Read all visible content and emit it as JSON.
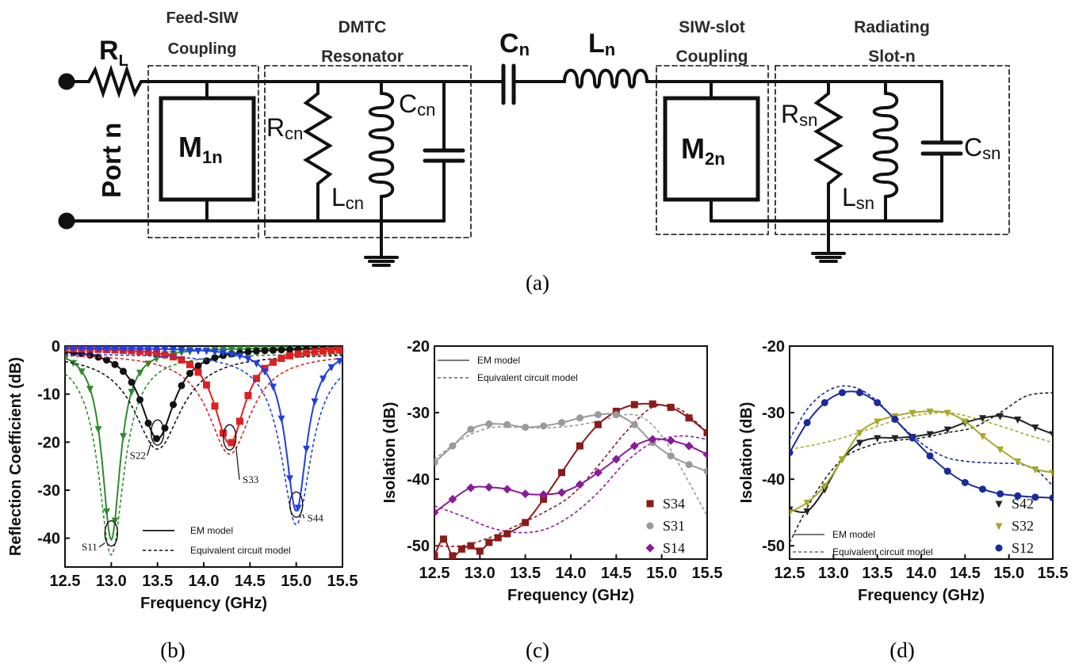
{
  "circuit": {
    "rl": "R",
    "rl_sub": "L",
    "port": "Port n",
    "feed_label_1": "Feed-SIW",
    "feed_label_2": "Coupling",
    "dmtc_label_1": "DMTC",
    "dmtc_label_2": "Resonator",
    "siwslot_label_1": "SIW-slot",
    "siwslot_label_2": "Coupling",
    "rad_label_1": "Radiating",
    "rad_label_2": "Slot-n",
    "m1": "M",
    "m1_sub": "1n",
    "m2": "M",
    "m2_sub": "2n",
    "cn": "C",
    "cn_sub": "n",
    "ln": "L",
    "ln_sub": "n",
    "rcn": "R",
    "rcn_sub": "cn",
    "lcn": "L",
    "lcn_sub": "cn",
    "ccn": "C",
    "ccn_sub": "cn",
    "rsn": "R",
    "rsn_sub": "sn",
    "lsn": "L",
    "lsn_sub": "sn",
    "csn": "C",
    "csn_sub": "sn"
  },
  "captions": {
    "a": "(a)",
    "b": "(b)",
    "c": "(c)",
    "d": "(d)"
  },
  "chart_data": [
    {
      "type": "line",
      "xlabel": "Frequency (GHz)",
      "ylabel": "Reflection Coefficient (dB)",
      "xlim": [
        12.5,
        15.5
      ],
      "ylim": [
        -46,
        0
      ],
      "xticks": [
        "12.5",
        "13.0",
        "13.5",
        "14.0",
        "14.5",
        "15.0",
        "15.5"
      ],
      "yticks": [
        "0",
        "-10",
        "-20",
        "-30",
        "-40"
      ],
      "legend": [
        "EM model",
        "Equivalent circuit model"
      ],
      "series": [
        {
          "name": "S11",
          "color": "#2e8b2e",
          "marker": "triangle-down",
          "resonance": 13.0,
          "depth": -40,
          "width": 0.12
        },
        {
          "name": "S22",
          "color": "#111111",
          "marker": "circle",
          "resonance": 13.5,
          "depth": -19,
          "width": 0.22
        },
        {
          "name": "S33",
          "color": "#e02020",
          "marker": "square",
          "resonance": 14.28,
          "depth": -20,
          "width": 0.2
        },
        {
          "name": "S44",
          "color": "#1f3fe0",
          "marker": "triangle-down",
          "resonance": 15.0,
          "depth": -34,
          "width": 0.14
        }
      ],
      "annotations": [
        {
          "text": "S11",
          "x": 12.68,
          "y": -42.5
        },
        {
          "text": "S22",
          "x": 13.2,
          "y": -23.5
        },
        {
          "text": "S33",
          "x": 14.42,
          "y": -28.5
        },
        {
          "text": "S44",
          "x": 15.12,
          "y": -36.5
        }
      ]
    },
    {
      "type": "line",
      "xlabel": "Frequency (GHz)",
      "ylabel": "Isolation (dB)",
      "xlim": [
        12.5,
        15.5
      ],
      "ylim": [
        -52,
        -20
      ],
      "xticks": [
        "12.5",
        "13.0",
        "13.5",
        "14.0",
        "14.5",
        "15.0",
        "15.5"
      ],
      "yticks": [
        "-20",
        "-30",
        "-40",
        "-50"
      ],
      "legend": [
        "EM model",
        "Equivalent circuit model"
      ],
      "series": [
        {
          "name": "S34",
          "color": "#8b1a1a",
          "marker": "square",
          "x": [
            12.5,
            12.6,
            12.7,
            12.8,
            12.9,
            13.0,
            13.1,
            13.2,
            13.3,
            13.5,
            13.7,
            13.9,
            14.1,
            14.3,
            14.5,
            14.7,
            14.9,
            15.1,
            15.3,
            15.5
          ],
          "y": [
            -51.5,
            -49,
            -51.5,
            -50.5,
            -50,
            -50.8,
            -49.5,
            -48.8,
            -48.2,
            -46.5,
            -43,
            -39,
            -35,
            -31.8,
            -29.8,
            -28.8,
            -28.7,
            -29.2,
            -30.8,
            -33
          ]
        },
        {
          "name": "S31",
          "color": "#9a9a9a",
          "marker": "circle",
          "x": [
            12.5,
            12.7,
            12.9,
            13.1,
            13.3,
            13.5,
            13.7,
            13.9,
            14.1,
            14.3,
            14.5,
            14.7,
            14.9,
            15.1,
            15.3,
            15.5
          ],
          "y": [
            -37.5,
            -35,
            -32.5,
            -31.7,
            -31.8,
            -32.2,
            -32,
            -31.5,
            -30.8,
            -30.3,
            -30.3,
            -31.8,
            -34.5,
            -36.5,
            -37.8,
            -38.8
          ]
        },
        {
          "name": "S14",
          "color": "#8b1a9a",
          "marker": "diamond",
          "x": [
            12.5,
            12.7,
            12.9,
            13.1,
            13.3,
            13.5,
            13.7,
            13.9,
            14.1,
            14.3,
            14.5,
            14.7,
            14.9,
            15.1,
            15.3,
            15.5
          ],
          "y": [
            -45,
            -43,
            -41.3,
            -41.2,
            -41.5,
            -42.2,
            -42.3,
            -42,
            -40.8,
            -39,
            -37,
            -35,
            -34,
            -34.2,
            -35,
            -36.3
          ]
        }
      ],
      "circuit_series": [
        {
          "name": "S34",
          "x": [
            12.5,
            12.8,
            13.1,
            13.4,
            13.7,
            14.0,
            14.3,
            14.6,
            14.9,
            15.2,
            15.5
          ],
          "y": [
            -50,
            -50,
            -48.8,
            -47,
            -45,
            -42.5,
            -38,
            -33,
            -29.2,
            -29.5,
            -33
          ]
        },
        {
          "name": "S31",
          "x": [
            12.5,
            12.8,
            13.1,
            13.4,
            13.7,
            14.0,
            14.3,
            14.6,
            14.8,
            15.0,
            15.2,
            15.5
          ],
          "y": [
            -37,
            -34,
            -32.3,
            -32.2,
            -32.3,
            -32,
            -31.3,
            -30.3,
            -30.8,
            -33.5,
            -38,
            -45.5
          ]
        },
        {
          "name": "S14",
          "x": [
            12.5,
            12.8,
            13.1,
            13.4,
            13.7,
            14.0,
            14.3,
            14.6,
            14.9,
            15.2,
            15.5
          ],
          "y": [
            -44,
            -45.5,
            -47.2,
            -48,
            -47.6,
            -45.5,
            -42,
            -37.5,
            -34.5,
            -33.5,
            -34
          ]
        }
      ]
    },
    {
      "type": "line",
      "xlabel": "Frequency (GHz)",
      "ylabel": "Isolation (dB)",
      "xlim": [
        12.5,
        15.5
      ],
      "ylim": [
        -52,
        -20
      ],
      "xticks": [
        "12.5",
        "13.0",
        "13.5",
        "14.0",
        "14.5",
        "15.0",
        "15.5"
      ],
      "yticks": [
        "-20",
        "-30",
        "-40",
        "-50"
      ],
      "legend": [
        "EM model",
        "Equivalent circuit model"
      ],
      "series": [
        {
          "name": "S42",
          "color": "#222222",
          "marker": "triangle-down",
          "x": [
            12.5,
            12.7,
            12.9,
            13.1,
            13.3,
            13.5,
            13.7,
            13.9,
            14.1,
            14.3,
            14.5,
            14.7,
            14.9,
            15.1,
            15.3,
            15.5
          ],
          "y": [
            -44.5,
            -44.8,
            -41.5,
            -37,
            -34.5,
            -33.8,
            -33.8,
            -33.6,
            -33.2,
            -32.5,
            -31.5,
            -30.8,
            -30.5,
            -31,
            -32.2,
            -33.2
          ]
        },
        {
          "name": "S32",
          "color": "#a8a82a",
          "marker": "triangle-down",
          "x": [
            12.5,
            12.7,
            12.9,
            13.1,
            13.3,
            13.5,
            13.7,
            13.9,
            14.1,
            14.3,
            14.5,
            14.7,
            14.9,
            15.1,
            15.3,
            15.5
          ],
          "y": [
            -45,
            -43.5,
            -41,
            -37,
            -33,
            -31.3,
            -30.5,
            -30,
            -29.8,
            -30,
            -31.3,
            -33.5,
            -35.5,
            -37.3,
            -38.5,
            -39
          ]
        },
        {
          "name": "S12",
          "color": "#1a2a9a",
          "marker": "circle",
          "x": [
            12.5,
            12.7,
            12.9,
            13.1,
            13.3,
            13.5,
            13.7,
            13.9,
            14.1,
            14.3,
            14.5,
            14.7,
            14.9,
            15.1,
            15.3,
            15.5
          ],
          "y": [
            -36,
            -31.5,
            -28.5,
            -27,
            -27,
            -28.5,
            -31,
            -33.8,
            -36.5,
            -38.8,
            -40.5,
            -41.5,
            -42.2,
            -42.5,
            -42.7,
            -42.8
          ]
        }
      ],
      "circuit_series": [
        {
          "name": "S42",
          "x": [
            12.5,
            12.8,
            13.1,
            13.4,
            13.7,
            14.0,
            14.3,
            14.6,
            14.9,
            15.2,
            15.5
          ],
          "y": [
            -49.5,
            -42,
            -37,
            -35,
            -34.2,
            -33.8,
            -33,
            -32.2,
            -30,
            -27.5,
            -27
          ]
        },
        {
          "name": "S32",
          "x": [
            12.5,
            12.8,
            13.1,
            13.4,
            13.7,
            14.0,
            14.3,
            14.6,
            14.9,
            15.2,
            15.5
          ],
          "y": [
            -35.5,
            -34.8,
            -33.8,
            -32.5,
            -31.2,
            -30.3,
            -30,
            -30.8,
            -32,
            -33.3,
            -34.5
          ]
        },
        {
          "name": "S12",
          "x": [
            12.5,
            12.7,
            12.9,
            13.1,
            13.3,
            13.5,
            13.7,
            13.9,
            14.1,
            14.3,
            14.5,
            14.7,
            14.9,
            15.1,
            15.3,
            15.5
          ],
          "y": [
            -34,
            -29.5,
            -27,
            -26,
            -26.5,
            -28.3,
            -31,
            -33.5,
            -35.5,
            -36.8,
            -37.3,
            -37.5,
            -37.6,
            -37.7,
            -38.5,
            -41
          ]
        }
      ]
    }
  ]
}
